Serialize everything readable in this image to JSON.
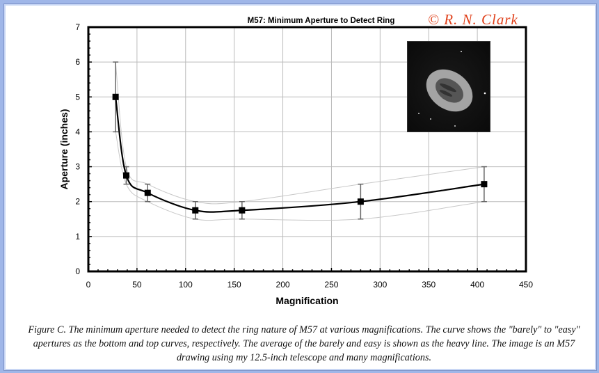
{
  "chart_data": {
    "type": "line",
    "title": "M57: Minimum Aperture to Detect Ring",
    "xlabel": "Magnification",
    "ylabel": "Aperture (inches)",
    "xlim": [
      0,
      450
    ],
    "ylim": [
      0,
      7
    ],
    "xticks": [
      0,
      50,
      100,
      150,
      200,
      250,
      300,
      350,
      400,
      450
    ],
    "yticks": [
      0,
      1,
      2,
      3,
      4,
      5,
      6,
      7
    ],
    "grid": true,
    "x": [
      28,
      39,
      61,
      110,
      158,
      280,
      407
    ],
    "series": [
      {
        "role": "average",
        "values": [
          5,
          2.75,
          2.25,
          1.75,
          1.75,
          2,
          2.5
        ]
      },
      {
        "role": "barely",
        "values": [
          4,
          2.5,
          2,
          1.5,
          1.5,
          1.5,
          2
        ]
      },
      {
        "role": "easy",
        "values": [
          6,
          3,
          2.5,
          2,
          2,
          2.5,
          3
        ]
      }
    ],
    "colors": {
      "average": "#000000",
      "bounds": "#c8c8c8",
      "error_bars": "#666666"
    }
  },
  "copyright": "© R. N. Clark",
  "caption": "Figure C. The minimum aperture needed to detect the ring nature of M57 at various magnifications. The curve shows the \"barely\" to \"easy\" apertures as the bottom and top curves, respectively. The average of the barely and easy is shown as the heavy line. The image is an M57 drawing using my 12.5-inch telescope and many magnifications."
}
